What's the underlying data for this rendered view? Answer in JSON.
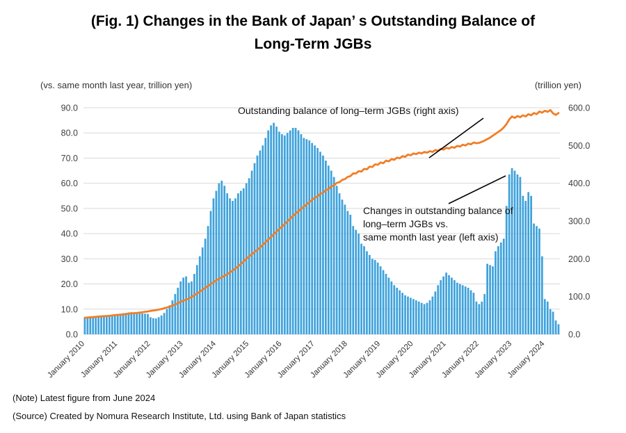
{
  "title": {
    "line1": "(Fig. 1) Changes in the Bank of Japan’ s Outstanding Balance of",
    "line2": "Long-Term JGBs"
  },
  "left_axis_caption": "(vs. same month last year, trillion yen)",
  "right_axis_caption": "(trillion yen)",
  "annotations": {
    "line_label": "Outstanding balance of long–term JGBs (right axis)",
    "bar_label_1": "Changes in outstanding balance of",
    "bar_label_2": "long–term JGBs vs.",
    "bar_label_3": "same month last year (left axis)"
  },
  "notes": {
    "note": "(Note) Latest figure from June 2024",
    "source": "(Source) Created by Nomura Research Institute, Ltd. using Bank of Japan statistics"
  },
  "colors": {
    "bar": "#3FA2DB",
    "line": "#F07E26",
    "grid": "#D9D9D9",
    "tick_text": "#404040",
    "callout": "#000000"
  },
  "chart_data": {
    "type": "bar",
    "combo": "monthly bars (left axis) + line (right axis)",
    "frequency": "monthly",
    "x_start": "January 2010",
    "x_end": "June 2024",
    "x_tick_labels": [
      "January 2010",
      "January 2011",
      "January 2012",
      "January 2013",
      "January 2014",
      "January 2015",
      "January 2016",
      "January 2017",
      "January 2018",
      "January 2019",
      "January 2020",
      "January 2021",
      "January 2022",
      "January 2023",
      "January 2024"
    ],
    "left_axis": {
      "caption": "(vs. same month last year, trillion yen)",
      "min": 0,
      "max": 90,
      "step": 10,
      "tick_labels": [
        "90.0",
        "80.0",
        "70.0",
        "60.0",
        "50.0",
        "40.0",
        "30.0",
        "20.0",
        "10.0",
        "0.0"
      ]
    },
    "right_axis": {
      "caption": "(trillion yen)",
      "min": 0,
      "max": 600,
      "step": 100,
      "tick_labels": [
        "600.0",
        "500.0",
        "400.0",
        "300.0",
        "200.0",
        "100.0",
        "0.0"
      ]
    },
    "grid": "horizontal only",
    "legend": "inline text annotations with callout lines",
    "series": [
      {
        "name": "Changes in outstanding balance of long-term JGBs vs. same month last year (left axis)",
        "type": "bar",
        "axis": "left",
        "color": "#3FA2DB",
        "values": [
          6.8,
          7.0,
          7.1,
          7.2,
          7.1,
          7.3,
          7.4,
          7.5,
          7.4,
          7.6,
          7.7,
          7.8,
          8.0,
          8.2,
          8.4,
          8.5,
          8.7,
          8.8,
          8.6,
          8.5,
          8.4,
          8.3,
          8.2,
          8.1,
          6.8,
          6.4,
          6.3,
          6.8,
          7.5,
          8.5,
          10.0,
          11.5,
          13.5,
          16.0,
          18.5,
          21.0,
          22.5,
          23.0,
          20.5,
          21.0,
          24.0,
          27.5,
          31.0,
          34.5,
          38.0,
          43.0,
          49.0,
          54.0,
          57.0,
          60.0,
          61.0,
          59.0,
          56.0,
          54.0,
          53.0,
          54.0,
          56.0,
          57.0,
          58.0,
          60.0,
          62.0,
          65.0,
          68.0,
          71.0,
          73.0,
          75.0,
          78.0,
          81.0,
          83.0,
          84.0,
          82.5,
          80.5,
          79.5,
          79.0,
          80.0,
          81.0,
          82.0,
          82.0,
          81.0,
          79.5,
          78.0,
          77.5,
          77.0,
          76.0,
          75.0,
          74.0,
          72.5,
          71.0,
          69.0,
          67.0,
          65.0,
          62.5,
          59.0,
          56.0,
          53.5,
          51.5,
          49.0,
          47.5,
          43.0,
          41.5,
          40.0,
          36.0,
          35.0,
          33.0,
          31.5,
          30.0,
          29.5,
          28.5,
          27.0,
          25.5,
          24.0,
          22.5,
          21.0,
          19.5,
          18.5,
          17.5,
          16.5,
          15.5,
          15.0,
          14.5,
          14.0,
          13.5,
          13.0,
          12.5,
          12.0,
          12.5,
          13.5,
          15.0,
          17.0,
          19.5,
          21.5,
          23.0,
          24.5,
          23.5,
          22.5,
          21.5,
          20.5,
          20.0,
          19.5,
          19.0,
          18.5,
          17.5,
          16.5,
          13.0,
          12.0,
          13.0,
          16.0,
          28.0,
          27.5,
          27.0,
          33.0,
          35.0,
          36.5,
          38.0,
          51.0,
          63.5,
          66.0,
          65.0,
          63.5,
          62.5,
          55.0,
          53.0,
          56.5,
          55.0,
          44.0,
          43.0,
          42.0,
          31.0,
          14.0,
          13.0,
          10.0,
          9.0,
          5.5,
          4.0
        ]
      },
      {
        "name": "Outstanding balance of long-term JGBs (right axis)",
        "type": "line",
        "axis": "right",
        "color": "#F07E26",
        "values": [
          44,
          44.5,
          45,
          45.5,
          46.5,
          47,
          47.5,
          48,
          48.5,
          49,
          50,
          51,
          51.5,
          52,
          52.5,
          53.5,
          54.5,
          55.5,
          56,
          56.5,
          57.5,
          58.5,
          59.5,
          60.5,
          62,
          63,
          64,
          65.5,
          67,
          69,
          71,
          73.5,
          76,
          79,
          82.5,
          86,
          89,
          92,
          95,
          99,
          103.5,
          108,
          113,
          118,
          123,
          128,
          133,
          138,
          143,
          147,
          151,
          155,
          159,
          164,
          169,
          174,
          180,
          186,
          193,
          200,
          206,
          212,
          218,
          224,
          230,
          237,
          244,
          251,
          258,
          265,
          272,
          279,
          285,
          292,
          299,
          306,
          313,
          320,
          326,
          332,
          338,
          344,
          350,
          356,
          362,
          365,
          372,
          375,
          382,
          384,
          392,
          394,
          401,
          403,
          409,
          411,
          417,
          419,
          426,
          426,
          432,
          431,
          438,
          437,
          444,
          443,
          450,
          449,
          455,
          453,
          460,
          458,
          464,
          462,
          468,
          466,
          472,
          470,
          476,
          474,
          479,
          477,
          481,
          479,
          483,
          481,
          485,
          483,
          488,
          486,
          491,
          489,
          494,
          492,
          496,
          494,
          499,
          497,
          502,
          500,
          505,
          503,
          508,
          506,
          507,
          510,
          513,
          517,
          521,
          526,
          531,
          536,
          541,
          548,
          557,
          569,
          577,
          573,
          578,
          575,
          580,
          577,
          583,
          580,
          586,
          583,
          590,
          587,
          592,
          589,
          594,
          585,
          581,
          586
        ]
      }
    ]
  }
}
